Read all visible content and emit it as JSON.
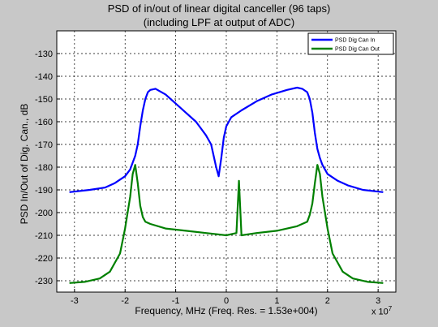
{
  "title_line1": "PSD of in/out of linear digital canceller (96 taps)",
  "title_line2": "(including LPF at output of ADC)",
  "xlabel": "Frequency, MHz (Freq. Res. = 1.53e+004)",
  "ylabel": "PSD In/Out of Dig. Can., dB",
  "x_exponent_base": "x 10",
  "x_exponent_power": "7",
  "colors": {
    "series_in": "#0000ff",
    "series_out": "#008000",
    "plot_bg": "#ffffff",
    "figure_bg": "#c8c8c8"
  },
  "chart_data": {
    "type": "line",
    "title": "PSD of in/out of linear digital canceller (96 taps) (including LPF at output of ADC)",
    "xlabel": "Frequency, MHz (Freq. Res. = 1.53e+004)",
    "ylabel": "PSD In/Out of Dig. Can., dB",
    "x_scale_note": "x 10^7",
    "xlim": [
      -33500000.0,
      33500000.0
    ],
    "ylim": [
      -235,
      -120
    ],
    "x_ticks": [
      -30000000.0,
      -20000000.0,
      -10000000.0,
      0,
      10000000.0,
      20000000.0,
      30000000.0
    ],
    "x_tick_labels": [
      "-3",
      "-2",
      "-1",
      "0",
      "1",
      "2",
      "3"
    ],
    "y_ticks": [
      -230,
      -220,
      -210,
      -200,
      -190,
      -180,
      -170,
      -160,
      -150,
      -140,
      -130
    ],
    "y_tick_labels": [
      "-230",
      "-220",
      "-210",
      "-200",
      "-190",
      "-180",
      "-170",
      "-160",
      "-150",
      "-140",
      "-130"
    ],
    "grid": true,
    "legend_position": "top-right",
    "series": [
      {
        "name": "PSD Dig Can In",
        "color": "#0000ff",
        "x": [
          -31000000.0,
          -27000000.0,
          -24000000.0,
          -22000000.0,
          -20000000.0,
          -19000000.0,
          -18500000.0,
          -18000000.0,
          -17500000.0,
          -17000000.0,
          -16500000.0,
          -16000000.0,
          -15500000.0,
          -15000000.0,
          -14000000.0,
          -12000000.0,
          -10000000.0,
          -8000000.0,
          -6000000.0,
          -5000000.0,
          -4000000.0,
          -3000000.0,
          -2500000.0,
          -2000000.0,
          -1500000.0,
          -1000000.0,
          -500000.0,
          0.0,
          1000000.0,
          3000000.0,
          6000000.0,
          9000000.0,
          12000000.0,
          14000000.0,
          15000000.0,
          16000000.0,
          16500000.0,
          17000000.0,
          17500000.0,
          18000000.0,
          18500000.0,
          19000000.0,
          20000000.0,
          22000000.0,
          24000000.0,
          27000000.0,
          31000000.0
        ],
        "y": [
          -191,
          -190,
          -189,
          -187,
          -184,
          -181,
          -178,
          -175,
          -170,
          -162,
          -155,
          -150,
          -147,
          -146,
          -145.5,
          -148,
          -152,
          -156,
          -160,
          -163,
          -166,
          -170,
          -175,
          -180,
          -184,
          -176,
          -167,
          -162,
          -158,
          -155,
          -151,
          -148,
          -146,
          -145,
          -145.5,
          -147,
          -150,
          -156,
          -165,
          -172,
          -176,
          -179,
          -183,
          -186,
          -188,
          -190,
          -191
        ]
      },
      {
        "name": "PSD Dig Can Out",
        "color": "#008000",
        "x": [
          -31000000.0,
          -28000000.0,
          -25000000.0,
          -23000000.0,
          -21000000.0,
          -20000000.0,
          -19000000.0,
          -18500000.0,
          -18000000.0,
          -17500000.0,
          -17000000.0,
          -16500000.0,
          -16000000.0,
          -15000000.0,
          -12000000.0,
          -8000000.0,
          -4000000.0,
          0.0,
          2000000.0,
          2500000.0,
          3000000.0,
          6000000.0,
          10000000.0,
          14000000.0,
          16000000.0,
          16500000.0,
          17000000.0,
          17500000.0,
          18000000.0,
          18500000.0,
          19000000.0,
          20000000.0,
          21000000.0,
          23000000.0,
          25000000.0,
          28000000.0,
          31000000.0
        ],
        "y": [
          -231,
          -230.5,
          -229,
          -226,
          -218,
          -207,
          -193,
          -183,
          -179,
          -187,
          -197,
          -202,
          -204,
          -205,
          -207,
          -208,
          -209,
          -210,
          -209,
          -186,
          -210,
          -209,
          -208,
          -206,
          -204,
          -201,
          -196,
          -187,
          -179,
          -183,
          -193,
          -207,
          -218,
          -226,
          -229,
          -230.5,
          -231
        ]
      }
    ]
  }
}
